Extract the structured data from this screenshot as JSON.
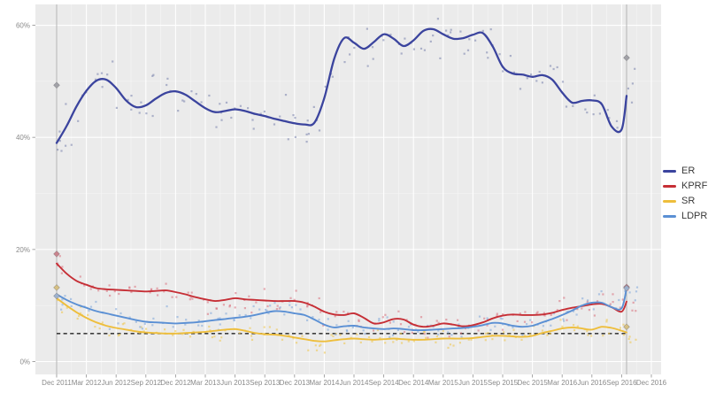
{
  "figure": {
    "type": "polling-trend-chart",
    "background": "#ffffff",
    "panel_background": "#ebebeb",
    "grid_major_color": "#ffffff",
    "grid_minor_color": "#f5f5f5",
    "axis_text_color": "#8a8a8a",
    "election_line_color": "#b3b3b3"
  },
  "axes": {
    "y_tick_labels": [
      "0%",
      "20%",
      "40%",
      "60%"
    ],
    "y_tick_values": [
      0,
      20,
      40,
      60
    ],
    "y_minor_values": [
      10,
      30,
      50
    ],
    "ylim": [
      -2.3,
      63.7
    ],
    "x_tick_labels": [
      "Dec 2011",
      "Mar 2012",
      "Jun 2012",
      "Sep 2012",
      "Dec 2012",
      "Mar 2013",
      "Jun 2013",
      "Sep 2013",
      "Dec 2013",
      "Mar 2014",
      "Jun 2014",
      "Sep 2014",
      "Dec 2014",
      "Mar 2015",
      "Jun 2015",
      "Sep 2015",
      "Dec 2015",
      "Mar 2016",
      "Jun 2016",
      "Sep 2016",
      "Dec 2016"
    ],
    "x_tick_step_months": 3
  },
  "chart_data": {
    "type": "scatter+smoothed-line",
    "x_unit": "months since Dec 2011 (monthly trend samples)",
    "threshold_line": {
      "value": 5,
      "style": "dashed",
      "color": "#3f3f3f"
    },
    "election_lines": [
      {
        "label": "Dec 2011",
        "month": 0
      },
      {
        "label": "Sep 2016",
        "month": 57.5
      }
    ],
    "election_results": [
      {
        "date": "Dec 2011",
        "month": 0,
        "values": {
          "ER": 49.3,
          "KPRF": 19.2,
          "SR": 13.2,
          "LDPR": 11.7
        }
      },
      {
        "date": "Sep 2016",
        "month": 57.5,
        "values": {
          "ER": 54.2,
          "KPRF": 13.3,
          "SR": 6.2,
          "LDPR": 13.1
        }
      }
    ],
    "marker_colors": {
      "ER": "#a2a2a8",
      "KPRF": "#c9838d",
      "SR": "#d6c083",
      "LDPR": "#9db1cd"
    },
    "series": [
      {
        "name": "ER",
        "color": "#3b449e",
        "scatter_color": "rgba(108,118,166,0.5)",
        "values": [
          39.0,
          42.0,
          45.5,
          48.3,
          50.1,
          50.3,
          48.8,
          46.6,
          45.4,
          45.7,
          46.9,
          47.9,
          48.2,
          47.6,
          46.4,
          45.2,
          44.5,
          44.7,
          45.0,
          44.7,
          44.2,
          43.8,
          43.3,
          42.9,
          42.5,
          42.3,
          42.6,
          47.0,
          54.0,
          57.7,
          56.9,
          55.8,
          57.0,
          58.4,
          57.6,
          56.3,
          57.3,
          59.0,
          59.3,
          58.4,
          57.6,
          57.7,
          58.3,
          58.6,
          56.2,
          52.6,
          51.4,
          51.2,
          50.8,
          51.1,
          50.3,
          48.0,
          46.2,
          46.5,
          46.6,
          45.9,
          41.9,
          41.4
        ],
        "end_value": 47.4
      },
      {
        "name": "KPRF",
        "color": "#c62f36",
        "scatter_color": "rgba(216,96,110,0.5)",
        "values": [
          17.5,
          15.7,
          14.4,
          13.7,
          13.1,
          12.9,
          12.8,
          12.7,
          12.6,
          12.5,
          12.6,
          12.7,
          12.4,
          12.0,
          11.5,
          11.1,
          10.8,
          11.0,
          11.3,
          11.1,
          11.0,
          10.9,
          10.8,
          10.8,
          10.8,
          10.5,
          9.8,
          8.9,
          8.4,
          8.3,
          8.6,
          7.8,
          6.8,
          7.0,
          7.6,
          7.5,
          6.6,
          6.2,
          6.4,
          6.8,
          6.6,
          6.3,
          6.5,
          7.0,
          7.7,
          8.2,
          8.4,
          8.3,
          8.3,
          8.4,
          8.7,
          9.2,
          9.6,
          9.9,
          10.2,
          10.3,
          9.7,
          8.9
        ],
        "end_value": 10.7
      },
      {
        "name": "SR",
        "color": "#eebe3c",
        "scatter_color": "rgba(238,200,84,0.6)",
        "values": [
          11.3,
          10.0,
          8.8,
          7.8,
          7.0,
          6.4,
          6.0,
          5.7,
          5.4,
          5.2,
          5.1,
          5.0,
          5.0,
          5.1,
          5.2,
          5.3,
          5.5,
          5.7,
          5.8,
          5.5,
          5.1,
          4.9,
          4.8,
          4.6,
          4.3,
          4.0,
          3.7,
          3.6,
          3.8,
          4.0,
          4.1,
          4.0,
          3.9,
          4.0,
          4.1,
          4.0,
          3.9,
          3.9,
          4.0,
          4.1,
          4.1,
          4.1,
          4.2,
          4.4,
          4.6,
          4.6,
          4.5,
          4.4,
          4.6,
          5.1,
          5.5,
          5.9,
          6.1,
          5.9,
          5.7,
          6.2,
          6.0,
          5.5
        ],
        "end_value": 5.2
      },
      {
        "name": "LDPR",
        "color": "#5b90d4",
        "scatter_color": "rgba(124,164,216,0.55)",
        "values": [
          12.0,
          11.0,
          10.2,
          9.6,
          9.0,
          8.6,
          8.2,
          7.8,
          7.4,
          7.1,
          7.0,
          6.9,
          6.8,
          6.9,
          7.0,
          7.2,
          7.4,
          7.6,
          7.8,
          8.0,
          8.3,
          8.7,
          9.0,
          8.9,
          8.6,
          8.3,
          7.5,
          6.6,
          6.1,
          6.3,
          6.4,
          6.1,
          5.9,
          5.8,
          5.9,
          5.8,
          5.6,
          5.6,
          5.7,
          5.8,
          5.9,
          6.0,
          6.2,
          6.5,
          6.9,
          6.8,
          6.4,
          6.2,
          6.4,
          7.0,
          7.6,
          8.3,
          9.1,
          10.0,
          10.5,
          10.5,
          9.7,
          9.5
        ],
        "end_value": 13.1
      }
    ]
  },
  "legend": {
    "entries": [
      {
        "label": "ER",
        "color": "#3b449e"
      },
      {
        "label": "KPRF",
        "color": "#c62f36"
      },
      {
        "label": "SR",
        "color": "#eebe3c"
      },
      {
        "label": "LDPR",
        "color": "#5b90d4"
      }
    ]
  }
}
